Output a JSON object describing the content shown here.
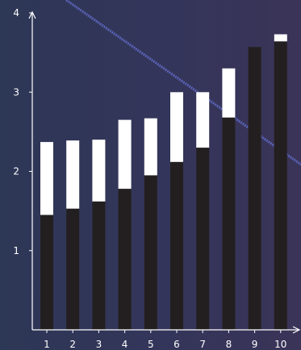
{
  "chart_data": {
    "type": "bar",
    "stacked": true,
    "categories": [
      "1",
      "2",
      "3",
      "4",
      "5",
      "6",
      "7",
      "8",
      "9",
      "10"
    ],
    "series": [
      {
        "values": [
          1.45,
          1.53,
          1.62,
          1.78,
          1.95,
          2.12,
          2.3,
          2.68,
          3.57,
          3.64
        ],
        "color": "#231f20"
      },
      {
        "values": [
          0.92,
          0.86,
          0.78,
          0.87,
          0.72,
          0.88,
          0.7,
          0.62,
          0.0,
          0.09
        ],
        "color": "#ffffff"
      }
    ],
    "yticks": [
      "1",
      "2",
      "3",
      "4"
    ],
    "ylim": [
      0,
      4
    ],
    "xlabel": "",
    "ylabel": "",
    "title": "",
    "grid": false,
    "trend_line_color": "#5a63b8"
  }
}
